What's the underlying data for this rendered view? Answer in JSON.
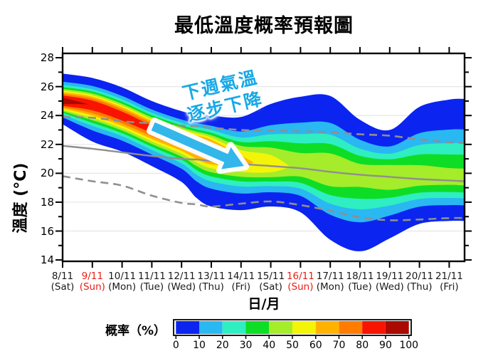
{
  "title": "最低溫度概率預報圖",
  "chart_data": {
    "type": "contour-fan",
    "title": "最低溫度概率預報圖",
    "ylabel": "溫度 (°C)",
    "xlabel": "日/月",
    "ylim": [
      13.9,
      28.3
    ],
    "y_major_ticks": [
      14,
      16,
      18,
      20,
      22,
      24,
      26,
      28
    ],
    "y_minor_ticks": [
      15,
      17,
      19,
      21,
      23,
      25,
      27
    ],
    "grid_temps": [
      16,
      18,
      20,
      22,
      24,
      26
    ],
    "x_dates": [
      {
        "label": "8/11",
        "dow": "(Sat)",
        "red": false
      },
      {
        "label": "9/11",
        "dow": "(Sun)",
        "red": true
      },
      {
        "label": "10/11",
        "dow": "(Mon)",
        "red": false
      },
      {
        "label": "11/11",
        "dow": "(Tue)",
        "red": false
      },
      {
        "label": "12/11",
        "dow": "(Wed)",
        "red": false
      },
      {
        "label": "13/11",
        "dow": "(Thu)",
        "red": false
      },
      {
        "label": "14/11",
        "dow": "(Fri)",
        "red": false
      },
      {
        "label": "15/11",
        "dow": "(Sat)",
        "red": false
      },
      {
        "label": "16/11",
        "dow": "(Sun)",
        "red": true
      },
      {
        "label": "17/11",
        "dow": "(Mon)",
        "red": false
      },
      {
        "label": "18/11",
        "dow": "(Tue)",
        "red": false
      },
      {
        "label": "19/11",
        "dow": "(Wed)",
        "red": false
      },
      {
        "label": "20/11",
        "dow": "(Thu)",
        "red": false
      },
      {
        "label": "21/11",
        "dow": "(Fri)",
        "red": false
      }
    ],
    "annotation": {
      "line1": "下週氣溫",
      "line2": "逐步下降",
      "text_color": "#17a8e6",
      "arrow_color": "#33b7ea"
    },
    "colorbar": {
      "label": "概率（%）",
      "ticks": [
        0,
        10,
        20,
        30,
        40,
        50,
        60,
        70,
        80,
        90,
        100
      ],
      "segment_colors": [
        "#0b24f0",
        "#29b8f2",
        "#2feec2",
        "#0edd25",
        "#a5ec2a",
        "#f4f408",
        "#ffb300",
        "#ff7c00",
        "#f81400",
        "#aa0a00"
      ]
    },
    "probability_field": {
      "days": [
        0,
        1,
        2,
        3,
        4,
        4.5,
        5,
        6,
        7,
        8,
        9,
        10,
        11,
        12,
        13,
        13.52
      ],
      "center_temp": [
        25.0,
        24.75,
        24.0,
        23.1,
        22.4,
        22.05,
        21.7,
        20.9,
        20.55,
        20.4,
        20.2,
        20.0,
        19.85,
        19.7,
        19.6,
        19.55
      ],
      "top_temp": [
        26.9,
        26.6,
        25.95,
        25.0,
        24.3,
        24.1,
        24.0,
        23.9,
        24.8,
        25.3,
        25.35,
        23.7,
        23.0,
        24.6,
        25.1,
        25.15
      ],
      "bottom_temp": [
        23.4,
        22.2,
        21.5,
        20.5,
        19.4,
        18.3,
        17.7,
        17.45,
        17.7,
        17.3,
        15.4,
        14.6,
        15.5,
        16.5,
        16.7,
        16.7
      ],
      "peak_probability": [
        97,
        89,
        87,
        85,
        86,
        85,
        83,
        63,
        56,
        47,
        49,
        45,
        49,
        45,
        43,
        43
      ],
      "band_levels": [
        10,
        20,
        30,
        40,
        50,
        60,
        70,
        80,
        90
      ],
      "base_color": "#0b24f0",
      "level_colors": [
        "#29b8f2",
        "#2feec2",
        "#0edd25",
        "#a5ec2a",
        "#f4f408",
        "#ffb300",
        "#ff7c00",
        "#f81400",
        "#aa0a00"
      ]
    },
    "reference_lines": {
      "color": "#8f8f8f",
      "upper_dashed_temp": [
        23.9,
        23.85,
        23.6,
        23.45,
        23.3,
        23.25,
        23.15,
        23.0,
        22.95,
        22.9,
        22.85,
        22.7,
        22.6,
        22.35,
        22.15,
        22.1
      ],
      "solid_temp": [
        21.9,
        21.7,
        21.45,
        21.2,
        21.0,
        20.95,
        20.85,
        20.65,
        20.5,
        20.35,
        20.1,
        19.9,
        19.75,
        19.6,
        19.5,
        19.45
      ],
      "lower_dashed_temp": [
        19.8,
        19.45,
        19.15,
        18.45,
        17.95,
        17.85,
        17.7,
        17.9,
        18.05,
        17.8,
        17.4,
        16.95,
        16.75,
        16.8,
        16.9,
        16.9
      ]
    }
  }
}
